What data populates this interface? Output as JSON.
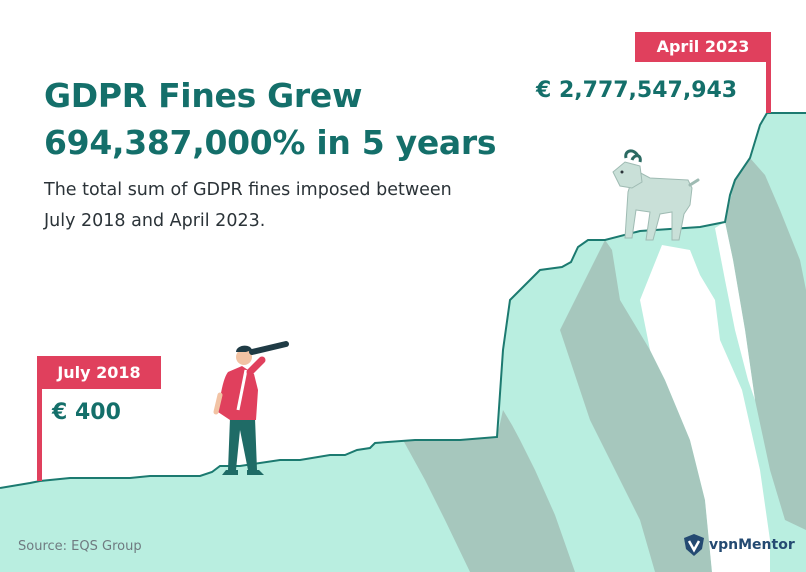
{
  "title_line1": "GDPR Fines Grew",
  "title_line2": "694,387,000% in 5 years",
  "subtitle": "The total sum of GDPR fines imposed between July 2018 and April 2023.",
  "start": {
    "label": "July 2018",
    "amount": "€ 400"
  },
  "end": {
    "label": "April 2023",
    "amount": "€ 2,777,547,943"
  },
  "source": "Source: EQS Group",
  "brand": {
    "name": "vpnMentor",
    "icon": "shield-logo-icon"
  },
  "colors": {
    "teal_text": "#146f6a",
    "flag_red": "#e0405d",
    "ground_mint": "#b9eee0",
    "ground_line": "#1c7a70",
    "shadow": "#a6c7bd"
  }
}
